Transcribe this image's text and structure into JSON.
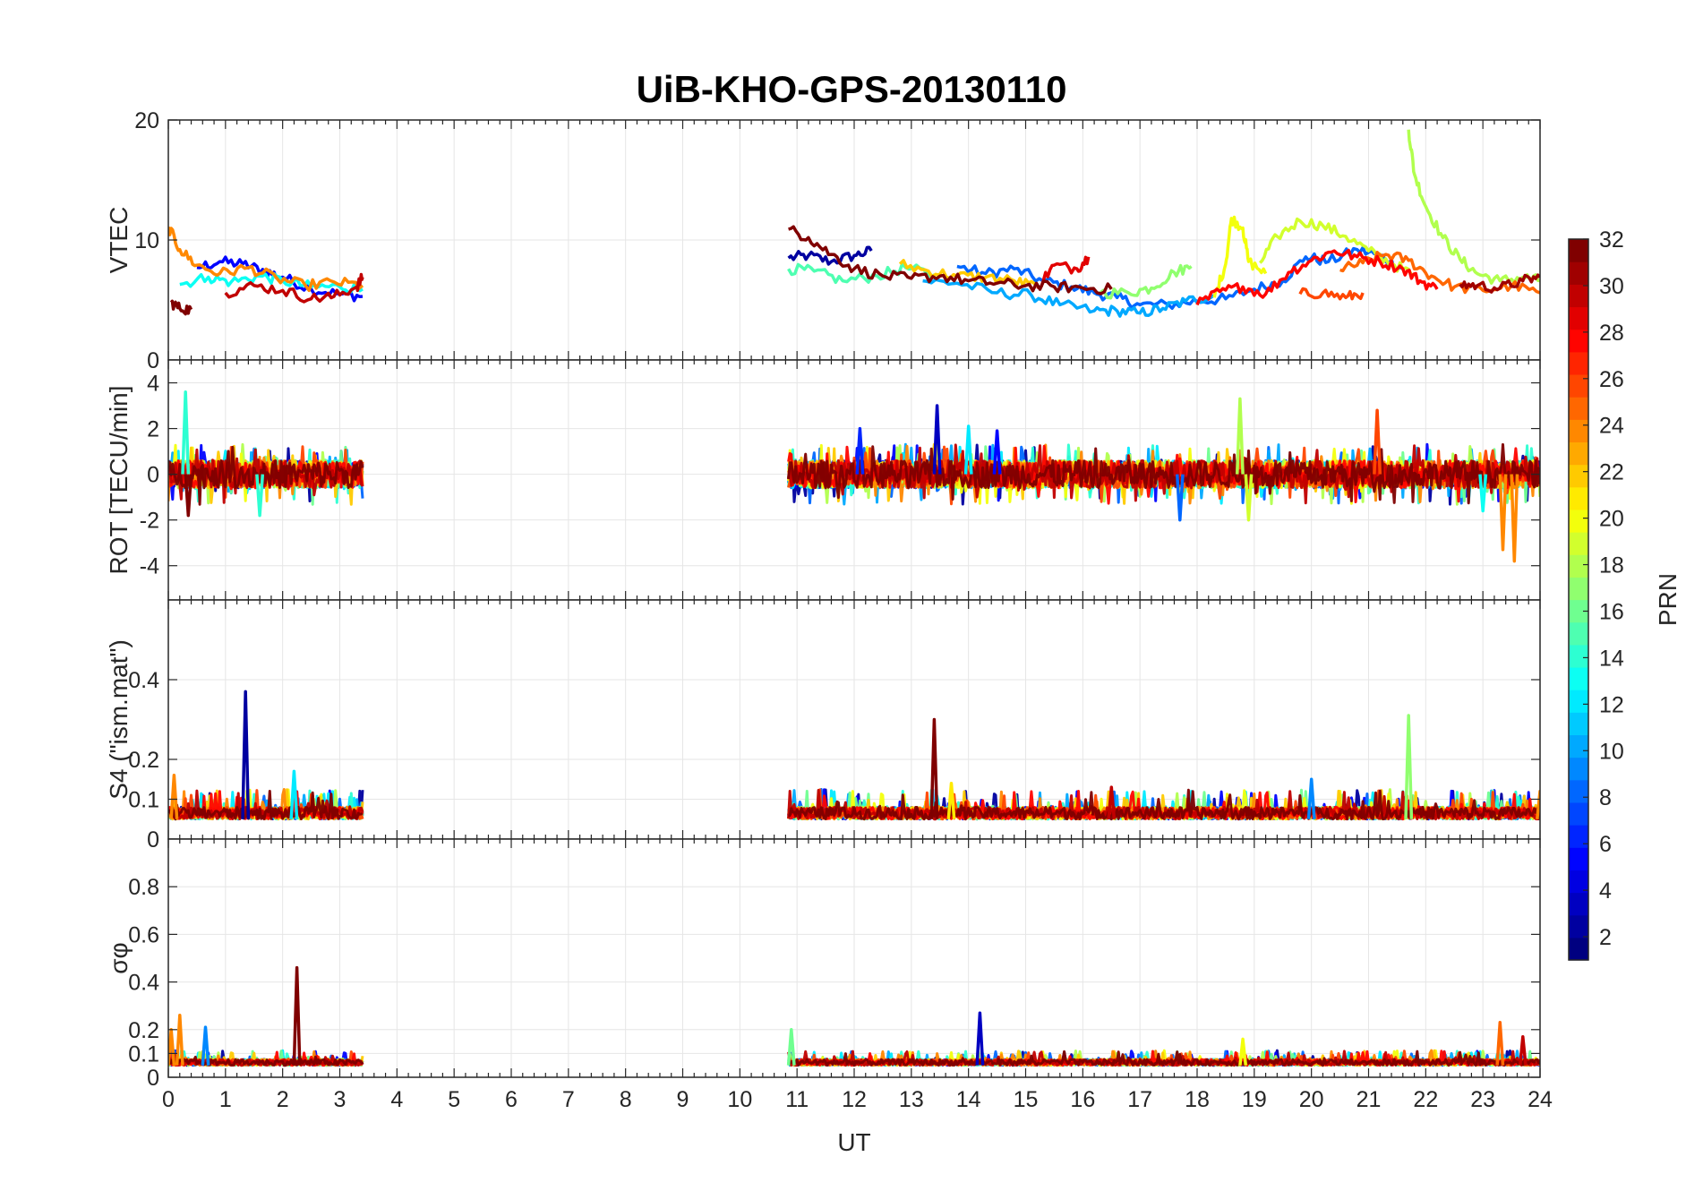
{
  "title": "UiB-KHO-GPS-20130110",
  "colors": {
    "grid": "#e6e6e6",
    "axis": "#262626",
    "background": "#ffffff"
  },
  "chart_data": [
    {
      "type": "line",
      "panel": "vtec",
      "ylabel": "VTEC",
      "ylim": [
        0,
        20
      ],
      "yticks": [
        "0",
        "10",
        "20"
      ],
      "grid": true,
      "series": [
        {
          "prn": 2,
          "points": [
            [
              10.85,
              8.5
            ],
            [
              11.2,
              8.7
            ],
            [
              11.6,
              8.2
            ],
            [
              12.0,
              8.7
            ],
            [
              12.3,
              9.1
            ]
          ]
        },
        {
          "prn": 5,
          "points": [
            [
              0.5,
              7.7
            ],
            [
              0.9,
              8.2
            ],
            [
              1.3,
              8.0
            ],
            [
              1.7,
              7.4
            ],
            [
              2.0,
              6.9
            ],
            [
              2.5,
              5.9
            ],
            [
              3.0,
              5.5
            ],
            [
              3.4,
              5.3
            ]
          ]
        },
        {
          "prn": 8,
          "points": [
            [
              13.8,
              7.8
            ],
            [
              14.3,
              7.2
            ],
            [
              14.8,
              7.6
            ],
            [
              15.3,
              6.6
            ],
            [
              15.8,
              6.1
            ],
            [
              16.2,
              5.6
            ],
            [
              16.6,
              5.2
            ],
            [
              17.0,
              4.6
            ],
            [
              17.5,
              4.6
            ],
            [
              18.0,
              4.9
            ],
            [
              18.5,
              5.1
            ],
            [
              19.0,
              5.9
            ],
            [
              19.5,
              6.6
            ],
            [
              19.9,
              8.6
            ],
            [
              20.3,
              8.2
            ],
            [
              20.8,
              9.2
            ],
            [
              21.2,
              8.7
            ],
            [
              21.6,
              7.6
            ]
          ]
        },
        {
          "prn": 10,
          "points": [
            [
              13.2,
              6.6
            ],
            [
              13.8,
              6.4
            ],
            [
              14.5,
              5.6
            ],
            [
              15.1,
              5.4
            ],
            [
              15.6,
              4.6
            ],
            [
              16.2,
              4.1
            ],
            [
              16.6,
              4.1
            ],
            [
              17.0,
              3.9
            ],
            [
              17.4,
              4.3
            ],
            [
              17.8,
              4.9
            ],
            [
              18.3,
              5.4
            ]
          ]
        },
        {
          "prn": 13,
          "points": [
            [
              0.2,
              6.3
            ],
            [
              0.7,
              6.9
            ],
            [
              1.1,
              6.5
            ],
            [
              1.6,
              7.0
            ],
            [
              2.0,
              6.6
            ],
            [
              2.5,
              6.1
            ],
            [
              3.0,
              6.1
            ],
            [
              3.4,
              5.9
            ]
          ]
        },
        {
          "prn": 15,
          "points": [
            [
              10.85,
              7.6
            ],
            [
              11.3,
              7.4
            ],
            [
              11.8,
              6.6
            ],
            [
              12.4,
              7.0
            ],
            [
              12.9,
              7.7
            ],
            [
              13.4,
              7.1
            ]
          ]
        },
        {
          "prn": 17,
          "points": [
            [
              16.3,
              5.6
            ],
            [
              16.8,
              5.6
            ],
            [
              17.2,
              6.0
            ],
            [
              17.6,
              7.3
            ],
            [
              17.9,
              7.8
            ]
          ]
        },
        {
          "prn": 18,
          "points": [
            [
              21.7,
              19.2
            ],
            [
              21.8,
              15.5
            ],
            [
              22.0,
              12.8
            ],
            [
              22.3,
              10.2
            ],
            [
              22.6,
              8.4
            ],
            [
              22.9,
              7.2
            ],
            [
              23.3,
              6.6
            ],
            [
              23.7,
              6.9
            ],
            [
              24.0,
              6.6
            ]
          ]
        },
        {
          "prn": 19,
          "points": [
            [
              19.1,
              8.1
            ],
            [
              19.4,
              10.3
            ],
            [
              19.8,
              11.6
            ],
            [
              20.2,
              11.2
            ],
            [
              20.6,
              10.3
            ],
            [
              21.0,
              9.1
            ],
            [
              21.4,
              8.1
            ],
            [
              21.8,
              7.0
            ]
          ]
        },
        {
          "prn": 20,
          "points": [
            [
              18.3,
              5.2
            ],
            [
              18.5,
              8.0
            ],
            [
              18.6,
              11.8
            ],
            [
              18.8,
              11.0
            ],
            [
              18.9,
              8.2
            ],
            [
              19.2,
              7.2
            ]
          ]
        },
        {
          "prn": 22,
          "points": [
            [
              12.8,
              8.0
            ],
            [
              13.3,
              7.4
            ],
            [
              13.8,
              7.0
            ],
            [
              14.3,
              6.9
            ],
            [
              14.8,
              6.6
            ],
            [
              15.2,
              6.1
            ]
          ]
        },
        {
          "prn": 24,
          "points": [
            [
              0.0,
              11.1
            ],
            [
              0.2,
              9.2
            ],
            [
              0.5,
              7.9
            ],
            [
              0.9,
              7.2
            ],
            [
              1.4,
              7.7
            ],
            [
              1.9,
              6.8
            ],
            [
              2.4,
              6.2
            ],
            [
              2.9,
              6.5
            ],
            [
              3.4,
              6.2
            ]
          ]
        },
        {
          "prn": 25,
          "points": [
            [
              20.5,
              7.5
            ],
            [
              20.9,
              8.1
            ],
            [
              21.3,
              8.8
            ],
            [
              21.7,
              8.3
            ],
            [
              22.1,
              7.0
            ],
            [
              22.5,
              6.1
            ],
            [
              23.0,
              5.8
            ],
            [
              23.5,
              6.2
            ],
            [
              24.0,
              5.6
            ]
          ]
        },
        {
          "prn": 26,
          "points": [
            [
              19.8,
              5.5
            ],
            [
              20.2,
              5.6
            ],
            [
              20.6,
              5.2
            ],
            [
              20.9,
              5.6
            ]
          ]
        },
        {
          "prn": 28,
          "points": [
            [
              18.0,
              4.6
            ],
            [
              18.4,
              5.7
            ],
            [
              18.8,
              6.1
            ],
            [
              19.2,
              5.5
            ],
            [
              19.6,
              7.3
            ],
            [
              20.0,
              8.3
            ],
            [
              20.4,
              9.1
            ],
            [
              20.8,
              8.6
            ],
            [
              21.2,
              8.2
            ],
            [
              21.6,
              7.6
            ],
            [
              21.9,
              6.6
            ],
            [
              22.2,
              5.9
            ]
          ]
        },
        {
          "prn": 29,
          "points": [
            [
              15.2,
              6.1
            ],
            [
              15.5,
              7.9
            ],
            [
              15.9,
              7.6
            ],
            [
              16.1,
              8.6
            ]
          ]
        },
        {
          "prn": 30,
          "points": [
            [
              1.0,
              5.6
            ],
            [
              1.5,
              6.2
            ],
            [
              2.0,
              5.8
            ],
            [
              2.5,
              5.1
            ],
            [
              2.9,
              5.3
            ],
            [
              3.3,
              6.1
            ],
            [
              3.4,
              6.9
            ]
          ]
        },
        {
          "prn": 31,
          "points": [
            [
              22.6,
              6.3
            ],
            [
              22.9,
              6.2
            ],
            [
              23.3,
              6.0
            ],
            [
              23.7,
              6.6
            ],
            [
              24.0,
              6.9
            ]
          ]
        },
        {
          "prn": 32,
          "points": [
            [
              0.05,
              4.8
            ],
            [
              0.2,
              4.3
            ],
            [
              0.4,
              4.2
            ],
            [
              10.85,
              10.9
            ],
            [
              11.2,
              10.2
            ],
            [
              11.6,
              8.8
            ],
            [
              12.0,
              7.6
            ],
            [
              12.5,
              7.0
            ],
            [
              13.0,
              6.8
            ],
            [
              13.5,
              7.0
            ],
            [
              14.0,
              6.6
            ],
            [
              14.5,
              6.4
            ],
            [
              15.0,
              6.2
            ],
            [
              15.5,
              6.1
            ],
            [
              16.0,
              6.0
            ],
            [
              16.5,
              5.9
            ]
          ]
        }
      ]
    },
    {
      "type": "line",
      "panel": "rot",
      "ylabel": "ROT [TECU/min]",
      "ylim": [
        -5.5,
        5
      ],
      "yticks": [
        "-4",
        "-2",
        "0",
        "2",
        "4"
      ],
      "grid": true,
      "segments": [
        [
          0.0,
          3.4
        ],
        [
          10.85,
          24.0
        ]
      ],
      "spikes": [
        {
          "prn": 14,
          "x": 0.3,
          "y": 3.6
        },
        {
          "prn": 32,
          "x": 0.35,
          "y": -1.8
        },
        {
          "prn": 14,
          "x": 1.6,
          "y": -1.8
        },
        {
          "prn": 6,
          "x": 12.1,
          "y": 2.0
        },
        {
          "prn": 3,
          "x": 13.45,
          "y": 3.0
        },
        {
          "prn": 12,
          "x": 14.0,
          "y": 2.1
        },
        {
          "prn": 5,
          "x": 14.5,
          "y": 1.9
        },
        {
          "prn": 8,
          "x": 17.7,
          "y": -2.0
        },
        {
          "prn": 18,
          "x": 18.75,
          "y": 3.3
        },
        {
          "prn": 19,
          "x": 18.9,
          "y": -2.0
        },
        {
          "prn": 26,
          "x": 21.15,
          "y": 2.8
        },
        {
          "prn": 13,
          "x": 23.0,
          "y": -1.6
        },
        {
          "prn": 24,
          "x": 23.35,
          "y": -3.3
        },
        {
          "prn": 24,
          "x": 23.55,
          "y": -3.8
        }
      ]
    },
    {
      "type": "line",
      "panel": "s4",
      "ylabel": "S4 (\"ism.mat\")",
      "ylim": [
        0,
        0.6
      ],
      "yticks": [
        "0",
        "0.1",
        "0.2",
        "0.4"
      ],
      "grid": true,
      "segments": [
        [
          0.0,
          3.4
        ],
        [
          10.85,
          24.0
        ]
      ],
      "spikes": [
        {
          "prn": 24,
          "x": 0.1,
          "y": 0.16
        },
        {
          "prn": 2,
          "x": 1.35,
          "y": 0.37
        },
        {
          "prn": 12,
          "x": 2.2,
          "y": 0.17
        },
        {
          "prn": 32,
          "x": 13.4,
          "y": 0.3
        },
        {
          "prn": 21,
          "x": 13.7,
          "y": 0.14
        },
        {
          "prn": 30,
          "x": 16.5,
          "y": 0.13
        },
        {
          "prn": 9,
          "x": 20.0,
          "y": 0.15
        },
        {
          "prn": 17,
          "x": 21.7,
          "y": 0.31
        },
        {
          "prn": 24,
          "x": 24.0,
          "y": 0.12
        }
      ]
    },
    {
      "type": "line",
      "panel": "sigma_phi",
      "ylabel": "σφ",
      "ylim": [
        0,
        1
      ],
      "yticks": [
        "0",
        "0.1",
        "0.2",
        "0.4",
        "0.6",
        "0.8"
      ],
      "xlabel": "UT",
      "xlim": [
        0,
        24
      ],
      "xticks": [
        "0",
        "1",
        "2",
        "3",
        "4",
        "5",
        "6",
        "7",
        "8",
        "9",
        "10",
        "11",
        "12",
        "13",
        "14",
        "15",
        "16",
        "17",
        "18",
        "19",
        "20",
        "21",
        "22",
        "23",
        "24"
      ],
      "grid": true,
      "segments": [
        [
          0.0,
          3.4
        ],
        [
          10.85,
          24.0
        ]
      ],
      "spikes": [
        {
          "prn": 24,
          "x": 0.05,
          "y": 0.2
        },
        {
          "prn": 24,
          "x": 0.2,
          "y": 0.26
        },
        {
          "prn": 9,
          "x": 0.65,
          "y": 0.21
        },
        {
          "prn": 32,
          "x": 2.25,
          "y": 0.46
        },
        {
          "prn": 16,
          "x": 10.9,
          "y": 0.2
        },
        {
          "prn": 3,
          "x": 14.2,
          "y": 0.27
        },
        {
          "prn": 20,
          "x": 18.8,
          "y": 0.16
        },
        {
          "prn": 25,
          "x": 23.3,
          "y": 0.23
        },
        {
          "prn": 30,
          "x": 23.7,
          "y": 0.17
        }
      ]
    }
  ],
  "colorbar": {
    "label": "PRN",
    "range": [
      1,
      32
    ],
    "ticks": [
      "2",
      "4",
      "6",
      "8",
      "10",
      "12",
      "14",
      "16",
      "18",
      "20",
      "22",
      "24",
      "26",
      "28",
      "30",
      "32"
    ],
    "colormap": "jet"
  }
}
